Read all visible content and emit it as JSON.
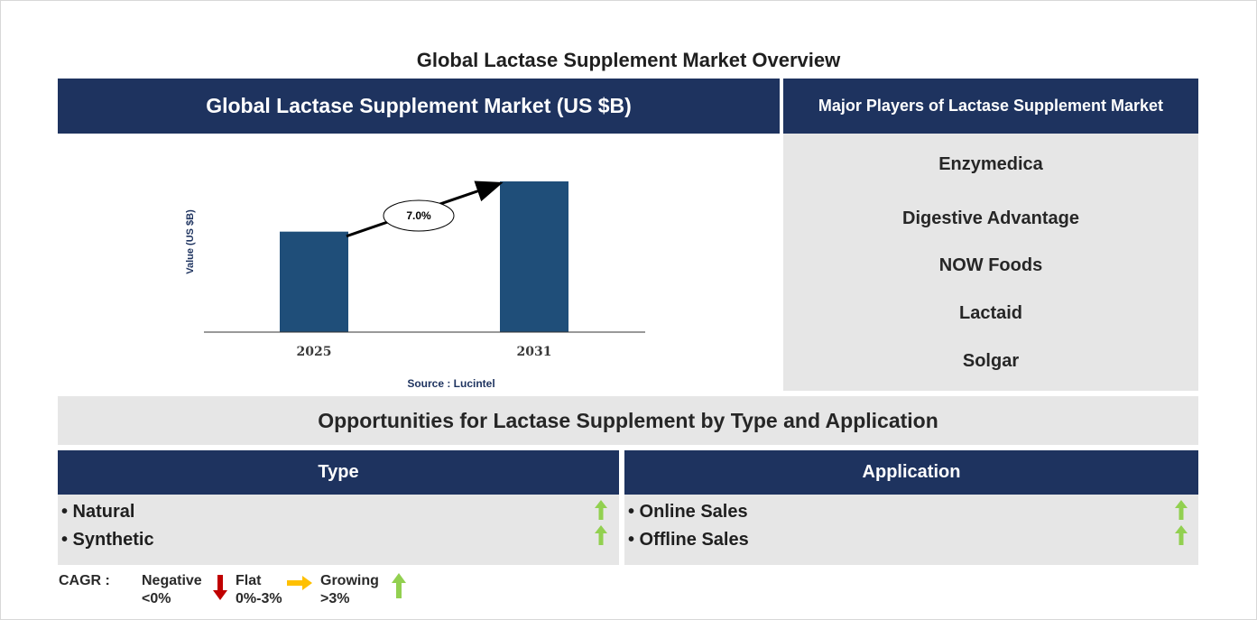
{
  "title": "Global Lactase Supplement Market Overview",
  "chart_panel": {
    "header": "Global Lactase Supplement Market (US $B)"
  },
  "chart_data": {
    "type": "bar",
    "categories": [
      "2025",
      "2031"
    ],
    "values": [
      1.0,
      1.5
    ],
    "ylabel": "Value (US $B)",
    "cagr_annotation": "7.0%",
    "source": "Source : Lucintel",
    "bar_color": "#1f4e79"
  },
  "players": {
    "header": "Major Players of Lactase Supplement Market",
    "items": [
      "Enzymedica",
      "Digestive Advantage",
      "NOW Foods",
      "Lactaid",
      "Solgar"
    ]
  },
  "opportunities": {
    "title": "Opportunities for Lactase Supplement by Type and Application",
    "type": {
      "header": "Type",
      "items": [
        {
          "label": "• Natural",
          "trend": "up-arrow-icon"
        },
        {
          "label": "• Synthetic",
          "trend": "up-arrow-icon"
        }
      ]
    },
    "application": {
      "header": "Application",
      "items": [
        {
          "label": "• Online Sales",
          "trend": "up-arrow-icon"
        },
        {
          "label": "• Offline Sales",
          "trend": "up-arrow-icon"
        }
      ]
    }
  },
  "legend": {
    "label": "CAGR  :",
    "negative": {
      "title": "Negative",
      "range": "<0%",
      "color": "#c00000"
    },
    "flat": {
      "title": "Flat",
      "range": "0%-3%",
      "color": "#ffc000"
    },
    "growing": {
      "title": "Growing",
      "range": ">3%",
      "color": "#92d050"
    }
  },
  "colors": {
    "navy": "#1e335f",
    "panel_grey": "#e6e6e6"
  }
}
